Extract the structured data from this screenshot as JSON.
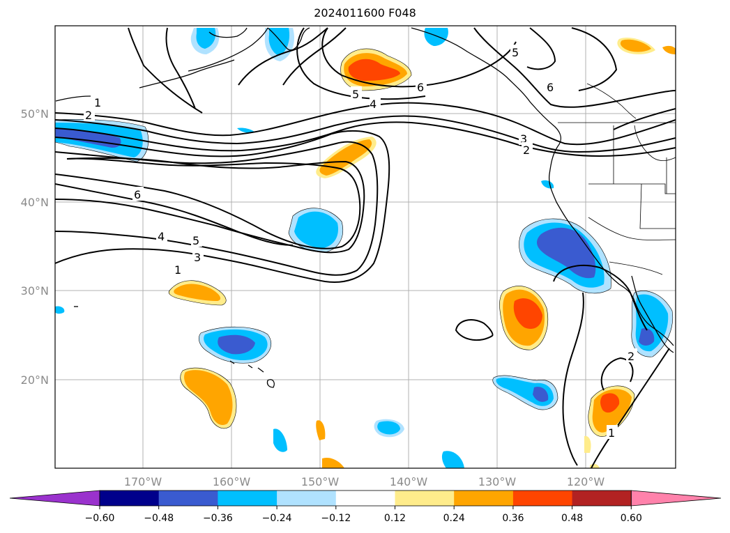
{
  "title": "2024011600 F048",
  "map": {
    "lat_labels": [
      "50°N",
      "40°N",
      "30°N",
      "20°N"
    ],
    "lon_labels": [
      "170°W",
      "160°W",
      "150°W",
      "140°W",
      "130°W",
      "120°W"
    ],
    "contour_labels": [
      "1",
      "2",
      "3",
      "4",
      "5",
      "6",
      "5",
      "4",
      "6",
      "5",
      "6",
      "3",
      "2",
      "6",
      "1",
      "4",
      "5",
      "3",
      "1",
      "1",
      "2"
    ]
  },
  "colorbar": {
    "colors": [
      "#9a32cd",
      "#00008b",
      "#3a5bd0",
      "#00bfff",
      "#b0e2ff",
      "#ffffff",
      "#ffec8b",
      "#ffa500",
      "#ff4500",
      "#b22222",
      "#ff82ab"
    ],
    "tick_labels": [
      "−0.60",
      "−0.48",
      "−0.36",
      "−0.24",
      "−0.12",
      "0.12",
      "0.24",
      "0.36",
      "0.48",
      "0.60"
    ]
  }
}
